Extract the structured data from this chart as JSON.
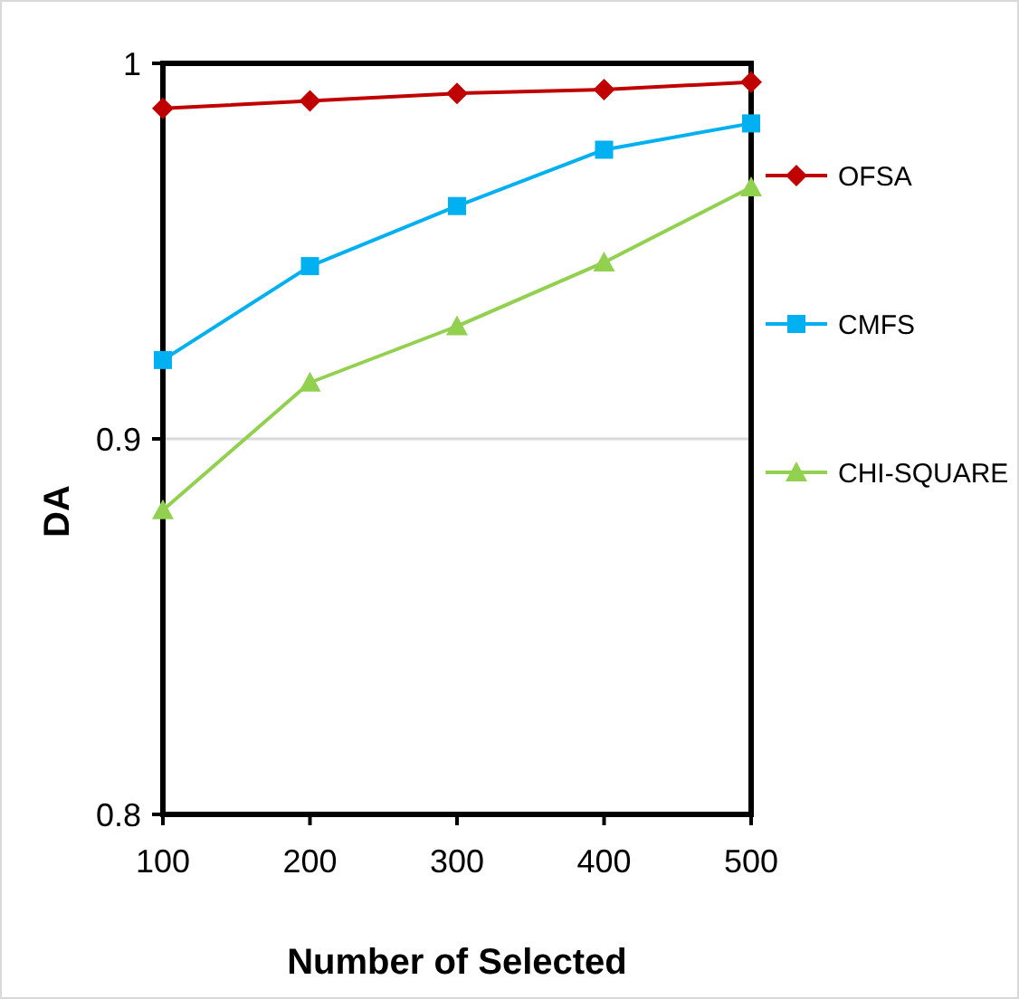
{
  "chart_data": {
    "type": "line",
    "xlabel": "Number of Selected",
    "ylabel": "DA",
    "x": [
      100,
      200,
      300,
      400,
      500
    ],
    "series": [
      {
        "name": "OFSA",
        "color": "#c00000",
        "values": [
          0.988,
          0.99,
          0.992,
          0.993,
          0.995
        ],
        "marker": "diamond"
      },
      {
        "name": "CMFS",
        "color": "#00b0f0",
        "values": [
          0.921,
          0.946,
          0.962,
          0.977,
          0.984
        ],
        "marker": "square"
      },
      {
        "name": "CHI-SQUARE",
        "color": "#92d050",
        "values": [
          0.881,
          0.915,
          0.93,
          0.947,
          0.967
        ],
        "marker": "triangle"
      }
    ],
    "xlim": [
      100,
      500
    ],
    "xticks": [
      100,
      200,
      300,
      400,
      500
    ],
    "ylim": [
      0.8,
      1
    ],
    "yticks": [
      0.8,
      0.9,
      {
        "value": 1,
        "label": "1"
      }
    ],
    "grid": "y",
    "legend": "right",
    "line_style": "solid"
  }
}
